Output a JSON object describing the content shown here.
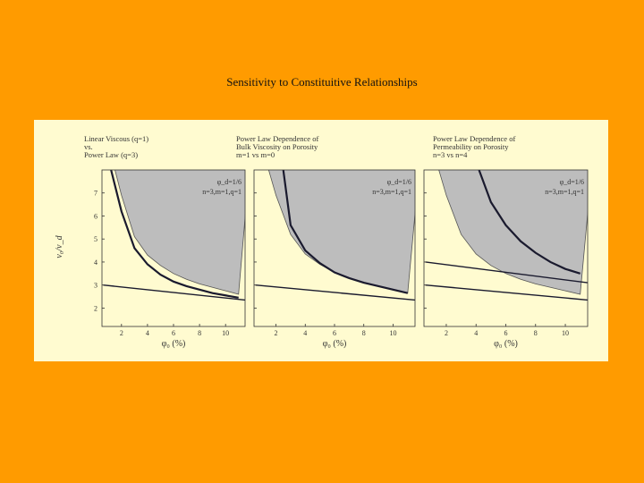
{
  "slide": {
    "title": "Sensitivity to Constituitive Relationships"
  },
  "theme": {
    "background": "#ff9b00",
    "panel_bg": "#fffbd0",
    "shade": "#bdbdbd",
    "curve": "#1a1a2e"
  },
  "figure": {
    "ylabel": "v₀/v_d",
    "panels": [
      {
        "heading": [
          "Linear Viscous (q=1)",
          "vs.",
          "Power Law (q=3)"
        ],
        "anno": [
          "φ_d=1/6",
          "n=3,m=1,q=1"
        ],
        "xlabel": "φ₀ (%)"
      },
      {
        "heading": [
          "Power Law Dependence of",
          "Bulk Viscosity on Porosity",
          "m=1 vs m=0"
        ],
        "anno": [
          "φ_d=1/6",
          "n=3,m=1,q=1"
        ],
        "xlabel": "φ₀ (%)"
      },
      {
        "heading": [
          "Power Law Dependence of",
          "Permeability on Porosity",
          "n=3 vs n=4"
        ],
        "anno": [
          "φ_d=1/6",
          "n=3,m=1,q=1"
        ],
        "xlabel": "φ₀ (%)"
      }
    ]
  },
  "chart_data": [
    {
      "type": "line",
      "title": "Linear Viscous (q=1) vs. Power Law (q=3)",
      "xlabel": "φ₀ (%)",
      "ylabel": "v₀/v_d",
      "xlim": [
        0.5,
        11.5
      ],
      "ylim": [
        1.2,
        8.0
      ],
      "xticks": [
        2,
        4,
        6,
        8,
        10
      ],
      "yticks": [
        2,
        3,
        4,
        5,
        6,
        7
      ],
      "series": [
        {
          "role": "shaded-boundary",
          "x": [
            1.5,
            2,
            3,
            4,
            5,
            6,
            7,
            8,
            9,
            10,
            11
          ],
          "y": [
            8.0,
            6.9,
            5.1,
            4.3,
            3.85,
            3.5,
            3.25,
            3.05,
            2.9,
            2.75,
            2.6
          ]
        },
        {
          "role": "curve",
          "x": [
            1.2,
            2,
            3,
            4,
            5,
            6,
            7,
            8,
            9,
            10,
            11
          ],
          "y": [
            8.0,
            6.2,
            4.6,
            3.9,
            3.45,
            3.15,
            2.95,
            2.8,
            2.65,
            2.55,
            2.45
          ]
        },
        {
          "role": "line",
          "x": [
            0.6,
            11.5
          ],
          "y": [
            3.0,
            2.35
          ]
        }
      ]
    },
    {
      "type": "line",
      "title": "Power Law Dependence of Bulk Viscosity on Porosity m=1 vs m=0",
      "xlabel": "φ₀ (%)",
      "ylabel": "v₀/v_d",
      "xlim": [
        0.5,
        11.5
      ],
      "ylim": [
        1.2,
        8.0
      ],
      "xticks": [
        2,
        4,
        6,
        8,
        10
      ],
      "yticks": [
        2,
        3,
        4,
        5,
        6,
        7
      ],
      "series": [
        {
          "role": "shaded-boundary",
          "x": [
            1.5,
            2,
            3,
            4,
            5,
            6,
            7,
            8,
            9,
            10,
            11
          ],
          "y": [
            8.0,
            6.9,
            5.2,
            4.35,
            3.9,
            3.55,
            3.3,
            3.1,
            2.95,
            2.8,
            2.65
          ]
        },
        {
          "role": "curve",
          "x": [
            2.5,
            3,
            4,
            5,
            6,
            7,
            8,
            9,
            10,
            11
          ],
          "y": [
            8.0,
            5.6,
            4.5,
            3.95,
            3.55,
            3.3,
            3.1,
            2.95,
            2.8,
            2.65
          ]
        },
        {
          "role": "line",
          "x": [
            0.6,
            11.5
          ],
          "y": [
            3.0,
            2.35
          ]
        }
      ]
    },
    {
      "type": "line",
      "title": "Power Law Dependence of Permeability on Porosity n=3 vs n=4",
      "xlabel": "φ₀ (%)",
      "ylabel": "v₀/v_d",
      "xlim": [
        0.5,
        11.5
      ],
      "ylim": [
        1.2,
        8.0
      ],
      "xticks": [
        2,
        4,
        6,
        8,
        10
      ],
      "yticks": [
        2,
        3,
        4,
        5,
        6,
        7
      ],
      "series": [
        {
          "role": "shaded-boundary",
          "x": [
            1.5,
            2,
            3,
            4,
            5,
            6,
            7,
            8,
            9,
            10,
            11
          ],
          "y": [
            8.0,
            6.9,
            5.2,
            4.35,
            3.85,
            3.5,
            3.25,
            3.05,
            2.9,
            2.75,
            2.6
          ]
        },
        {
          "role": "curve",
          "x": [
            4.2,
            5,
            6,
            7,
            8,
            9,
            10,
            11
          ],
          "y": [
            8.0,
            6.6,
            5.6,
            4.9,
            4.4,
            4.0,
            3.7,
            3.5
          ]
        },
        {
          "role": "line",
          "x": [
            0.6,
            11.5
          ],
          "y": [
            4.0,
            3.1
          ]
        },
        {
          "role": "line",
          "x": [
            0.6,
            11.5
          ],
          "y": [
            3.0,
            2.35
          ]
        }
      ]
    }
  ]
}
